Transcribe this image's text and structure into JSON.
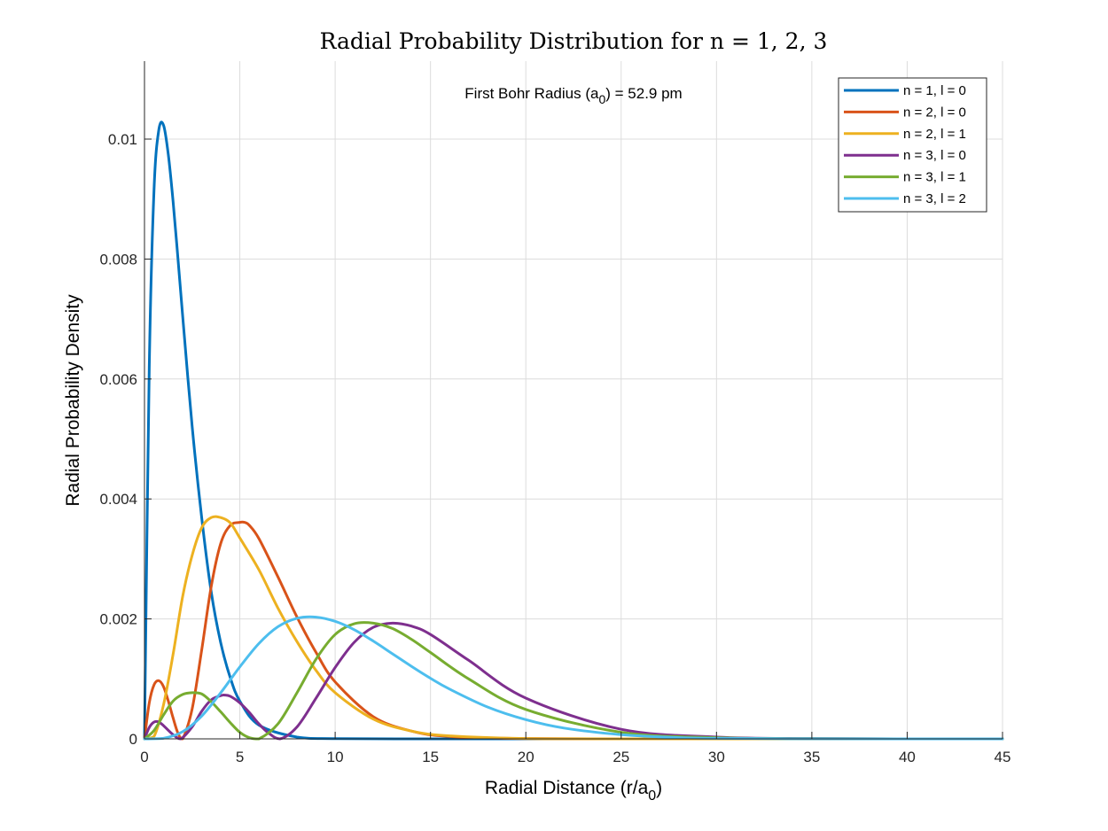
{
  "chart_data": {
    "type": "line",
    "title": "Radial Probability Distribution for n = 1, 2, 3",
    "xlabel": "Radial Distance (r/a",
    "xlabel_sub": "0",
    "xlabel_end": ")",
    "ylabel": "Radial Probability Density",
    "xlim": [
      0,
      45
    ],
    "ylim": [
      0,
      0.0113
    ],
    "xticks": [
      0,
      5,
      10,
      15,
      20,
      25,
      30,
      35,
      40,
      45
    ],
    "xtick_labels": [
      "0",
      "5",
      "10",
      "15",
      "20",
      "25",
      "30",
      "35",
      "40",
      "45"
    ],
    "yticks": [
      0,
      0.002,
      0.004,
      0.006,
      0.008,
      0.01
    ],
    "ytick_labels": [
      "0",
      "0.002",
      "0.004",
      "0.006",
      "0.008",
      "0.01"
    ],
    "grid": true,
    "legend_position": "top-right",
    "annotation": {
      "text": "First Bohr Radius (a",
      "sub": "0",
      "tail": ") = 52.9 pm"
    },
    "series": [
      {
        "name": "n = 1, l = 0",
        "color": "#0072BD",
        "x": [
          0,
          0.25,
          0.5,
          0.75,
          1.0,
          1.25,
          1.5,
          1.75,
          2.0,
          2.5,
          3.0,
          3.5,
          4.0,
          4.5,
          5.0,
          6.0,
          8.0,
          10,
          15,
          20,
          30,
          45
        ],
        "y": [
          0,
          0.00619,
          0.00915,
          0.01015,
          0.01023,
          0.00974,
          0.00896,
          0.00803,
          0.00706,
          0.00521,
          0.00369,
          0.00245,
          0.0016,
          0.00102,
          0.00063,
          0.00023,
          3e-05,
          4e-06,
          0,
          0,
          0,
          0
        ]
      },
      {
        "name": "n = 2, l = 0",
        "color": "#D95319",
        "x": [
          0,
          0.25,
          0.5,
          0.75,
          1.0,
          1.25,
          1.5,
          1.75,
          2.0,
          2.5,
          3.0,
          3.5,
          4.0,
          4.5,
          5.0,
          5.24,
          5.5,
          6.0,
          7.0,
          8.0,
          9.0,
          10,
          12,
          14,
          16,
          20,
          25,
          30,
          45
        ],
        "y": [
          0,
          0.0006,
          0.0009,
          0.00097,
          0.00087,
          0.00063,
          0.00035,
          0.0001,
          0,
          0.0005,
          0.00148,
          0.00254,
          0.00326,
          0.00356,
          0.00361,
          0.00361,
          0.00356,
          0.00334,
          0.0027,
          0.00203,
          0.00144,
          0.00095,
          0.00037,
          0.00013,
          4e-05,
          5e-06,
          0,
          0,
          0
        ]
      },
      {
        "name": "n = 2, l = 1",
        "color": "#EDB120",
        "x": [
          0,
          0.5,
          1.0,
          1.5,
          2.0,
          2.5,
          3.0,
          3.5,
          4.0,
          4.5,
          5.0,
          6.0,
          7.0,
          8.0,
          9.0,
          10,
          12,
          14,
          16,
          20,
          25,
          45
        ],
        "y": [
          0,
          4e-05,
          0.00057,
          0.00141,
          0.00237,
          0.00306,
          0.00352,
          0.00369,
          0.00369,
          0.0036,
          0.00335,
          0.00282,
          0.00218,
          0.00162,
          0.00114,
          0.00077,
          0.00033,
          0.00013,
          5e-05,
          5e-06,
          0,
          0
        ]
      },
      {
        "name": "n = 3, l = 0",
        "color": "#7E2F8E",
        "x": [
          0,
          0.25,
          0.5,
          0.75,
          1.0,
          1.5,
          1.9,
          2.5,
          3.0,
          3.5,
          4.0,
          4.2,
          4.5,
          5.0,
          5.5,
          6.0,
          6.5,
          7.1,
          8.0,
          9.0,
          10,
          11,
          12,
          13,
          14,
          15,
          17,
          20,
          25,
          30,
          35,
          40,
          45
        ],
        "y": [
          0,
          0.00019,
          0.00028,
          0.00028,
          0.00022,
          7e-05,
          0,
          0.0002,
          0.00046,
          0.00065,
          0.00072,
          0.00073,
          0.00071,
          0.0006,
          0.00044,
          0.00025,
          0.0001,
          0,
          0.0002,
          0.00068,
          0.00119,
          0.00161,
          0.00186,
          0.00193,
          0.00188,
          0.00174,
          0.00131,
          0.00068,
          0.00016,
          3e-05,
          5e-06,
          0,
          0
        ]
      },
      {
        "name": "n = 3, l = 1",
        "color": "#77AC30",
        "x": [
          0,
          0.5,
          1.0,
          1.5,
          2.0,
          2.5,
          3.0,
          3.5,
          4.0,
          4.5,
          5.0,
          5.5,
          6.0,
          7.0,
          8.0,
          9.0,
          10,
          11,
          12,
          13,
          14,
          15,
          17,
          20,
          25,
          30,
          35,
          40,
          45
        ],
        "y": [
          0,
          0.00014,
          0.0004,
          0.00063,
          0.00074,
          0.00077,
          0.00075,
          0.00062,
          0.00045,
          0.00027,
          0.00011,
          2e-05,
          0,
          0.00025,
          0.00077,
          0.00133,
          0.00174,
          0.00192,
          0.00193,
          0.00184,
          0.00166,
          0.00144,
          0.001,
          0.00049,
          0.00011,
          2e-05,
          3e-06,
          0,
          0
        ]
      },
      {
        "name": "n = 3, l = 2",
        "color": "#4DBEEE",
        "x": [
          0,
          1,
          2,
          3,
          4,
          5,
          6,
          7,
          8,
          9,
          10,
          11,
          12,
          13,
          14,
          15,
          16,
          18,
          20,
          22,
          25,
          28,
          30,
          35,
          40,
          45
        ],
        "y": [
          0,
          1e-05,
          0.00012,
          0.00038,
          0.00077,
          0.0012,
          0.00159,
          0.00187,
          0.00201,
          0.00203,
          0.00196,
          0.00182,
          0.00163,
          0.00142,
          0.00121,
          0.00101,
          0.00083,
          0.00053,
          0.00032,
          0.00018,
          7e-05,
          2e-05,
          1e-05,
          1e-06,
          0,
          0
        ]
      }
    ]
  }
}
